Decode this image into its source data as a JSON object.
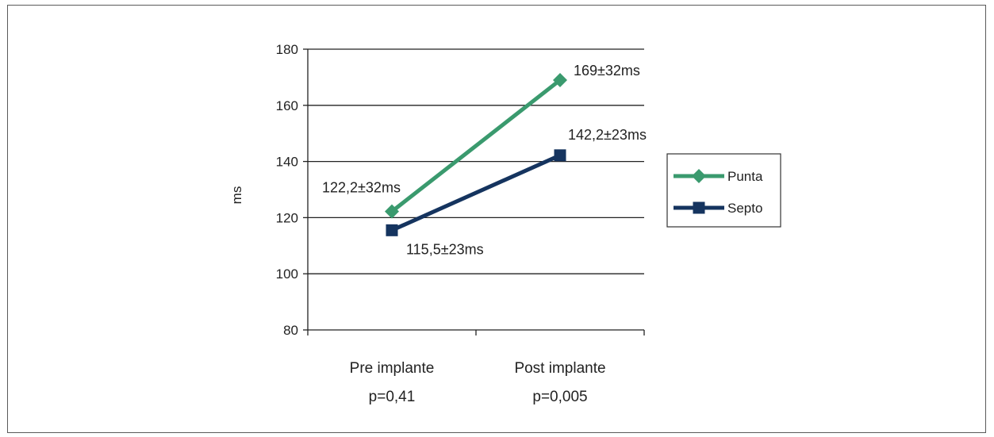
{
  "chart_data": {
    "type": "line",
    "ylabel": "ms",
    "ylim": [
      80,
      180
    ],
    "yticks": [
      80,
      100,
      120,
      140,
      160,
      180
    ],
    "grid": true,
    "categories": [
      "Pre implante",
      "Post implante"
    ],
    "sublabels": [
      "p=0,41",
      "p=0,005"
    ],
    "series": [
      {
        "name": "Punta",
        "values": [
          122.2,
          169
        ],
        "color": "#3a9a6e",
        "marker": "diamond",
        "labels": [
          "122,2±32ms",
          "169±32ms"
        ]
      },
      {
        "name": "Septo",
        "values": [
          115.5,
          142.2
        ],
        "color": "#15345f",
        "marker": "square",
        "labels": [
          "115,5±23ms",
          "142,2±23ms"
        ]
      }
    ],
    "legend_position": "right"
  }
}
